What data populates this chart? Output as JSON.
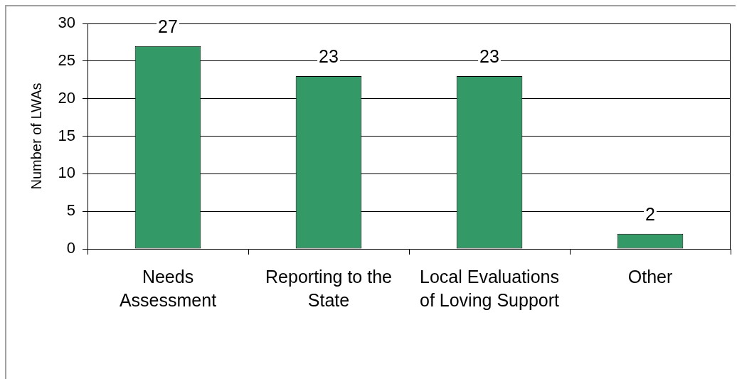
{
  "chart_data": {
    "type": "bar",
    "ylabel": "Number of LWAs",
    "categories": [
      "Needs Assessment",
      "Reporting to the State",
      "Local Evaluations of Loving Support",
      "Other"
    ],
    "values": [
      27,
      23,
      23,
      2
    ],
    "color": "#339966",
    "ylim": [
      0,
      30
    ],
    "yticks": [
      0,
      5,
      10,
      15,
      20,
      25,
      30
    ],
    "grid": "y",
    "data_labels": true
  }
}
